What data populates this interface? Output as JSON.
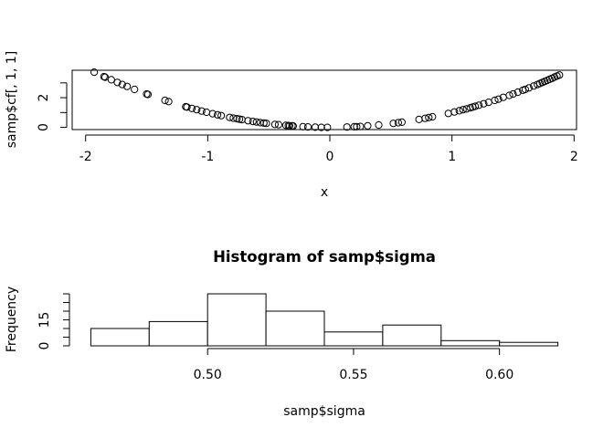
{
  "chart_data": [
    {
      "type": "scatter",
      "title": "",
      "xlabel": "x",
      "ylabel": "samp$cf[, 1, 1]",
      "xlim": [
        -2,
        2
      ],
      "ylim": [
        0,
        3.7
      ],
      "x_ticks": [
        -2,
        -1,
        0,
        1,
        2
      ],
      "x_tick_labels": [
        "-2",
        "-1",
        "0",
        "1",
        "2"
      ],
      "y_ticks": [
        0,
        1,
        2,
        3
      ],
      "y_tick_labels": [
        "0",
        "",
        "2",
        ""
      ],
      "grid": false,
      "marker": "open-circle",
      "x": [
        -1.93,
        -1.85,
        -1.84,
        -1.79,
        -1.74,
        -1.7,
        -1.66,
        -1.6,
        -1.5,
        -1.49,
        -1.35,
        -1.32,
        -1.18,
        -1.17,
        -1.13,
        -1.09,
        -1.05,
        -1.01,
        -0.96,
        -0.92,
        -0.89,
        -0.82,
        -0.79,
        -0.76,
        -0.74,
        -0.72,
        -0.67,
        -0.63,
        -0.6,
        -0.57,
        -0.54,
        -0.52,
        -0.45,
        -0.42,
        -0.36,
        -0.34,
        -0.33,
        -0.31,
        -0.3,
        -0.22,
        -0.18,
        -0.12,
        -0.07,
        -0.02,
        0.14,
        0.2,
        0.22,
        0.25,
        0.31,
        0.4,
        0.52,
        0.56,
        0.59,
        0.73,
        0.78,
        0.81,
        0.84,
        0.97,
        1.02,
        1.06,
        1.09,
        1.12,
        1.15,
        1.17,
        1.19,
        1.22,
        1.26,
        1.3,
        1.35,
        1.38,
        1.42,
        1.47,
        1.5,
        1.54,
        1.58,
        1.6,
        1.63,
        1.67,
        1.7,
        1.72,
        1.74,
        1.76,
        1.78,
        1.8,
        1.82,
        1.84,
        1.86,
        1.88
      ],
      "y": [
        3.72,
        3.42,
        3.38,
        3.21,
        3.03,
        2.89,
        2.76,
        2.56,
        2.25,
        2.22,
        1.82,
        1.74,
        1.39,
        1.37,
        1.28,
        1.19,
        1.1,
        1.02,
        0.92,
        0.85,
        0.79,
        0.67,
        0.62,
        0.58,
        0.55,
        0.52,
        0.45,
        0.4,
        0.36,
        0.32,
        0.29,
        0.27,
        0.2,
        0.18,
        0.13,
        0.12,
        0.11,
        0.1,
        0.09,
        0.05,
        0.03,
        0.01,
        0.0,
        0.0,
        0.02,
        0.04,
        0.05,
        0.06,
        0.1,
        0.16,
        0.27,
        0.31,
        0.35,
        0.53,
        0.61,
        0.66,
        0.71,
        0.94,
        1.04,
        1.12,
        1.19,
        1.25,
        1.32,
        1.37,
        1.42,
        1.49,
        1.59,
        1.69,
        1.82,
        1.9,
        2.02,
        2.16,
        2.25,
        2.37,
        2.5,
        2.56,
        2.66,
        2.79,
        2.89,
        2.96,
        3.03,
        3.1,
        3.17,
        3.24,
        3.31,
        3.39,
        3.46,
        3.53
      ]
    },
    {
      "type": "bar",
      "title": "Histogram of samp$sigma",
      "xlabel": "samp$sigma",
      "ylabel": "Frequency",
      "xlim": [
        0.46,
        0.62
      ],
      "ylim": [
        0,
        30
      ],
      "x_ticks": [
        0.5,
        0.55,
        0.6
      ],
      "x_tick_labels": [
        "0.50",
        "0.55",
        "0.60"
      ],
      "y_ticks": [
        0,
        5,
        10,
        15,
        20,
        25,
        30
      ],
      "y_tick_labels": [
        "0",
        "",
        "",
        "15",
        "",
        "",
        ""
      ],
      "grid": false,
      "bins": [
        {
          "x0": 0.46,
          "x1": 0.48,
          "count": 10
        },
        {
          "x0": 0.48,
          "x1": 0.5,
          "count": 14
        },
        {
          "x0": 0.5,
          "x1": 0.52,
          "count": 30
        },
        {
          "x0": 0.52,
          "x1": 0.54,
          "count": 20
        },
        {
          "x0": 0.54,
          "x1": 0.56,
          "count": 8
        },
        {
          "x0": 0.56,
          "x1": 0.58,
          "count": 12
        },
        {
          "x0": 0.58,
          "x1": 0.6,
          "count": 3
        },
        {
          "x0": 0.6,
          "x1": 0.62,
          "count": 2
        }
      ]
    }
  ]
}
